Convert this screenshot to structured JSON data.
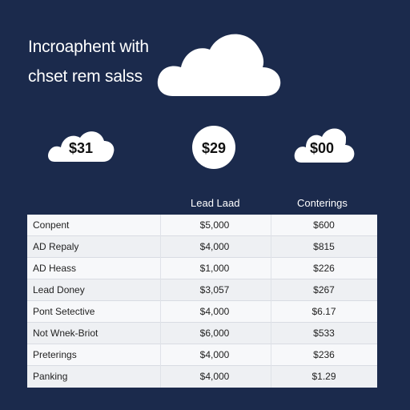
{
  "title": {
    "line1": "Incroaphent with",
    "line2": "chset rem salss"
  },
  "prices": {
    "left": "$31",
    "middle": "$29",
    "right": "$00"
  },
  "table": {
    "headers": [
      "Lead Laad",
      "Conterings"
    ],
    "rows": [
      [
        "Conpent",
        "$5,000",
        "$600"
      ],
      [
        "AD Repaly",
        "$4,000",
        "$815"
      ],
      [
        "AD Heass",
        "$1,000",
        "$226"
      ],
      [
        "Lead Doney",
        "$3,057",
        "$267"
      ],
      [
        "Pont Setective",
        "$4,000",
        "$6.17"
      ],
      [
        "Not Wnek-Briot",
        "$6,000",
        "$533"
      ],
      [
        "Preterings",
        "$4,000",
        "$236"
      ],
      [
        "Panking",
        "$4,000",
        "$1.29"
      ]
    ]
  },
  "colors": {
    "background": "#1b2a4c",
    "cloud": "#ffffff",
    "table_bg": "#f2f3f6"
  }
}
